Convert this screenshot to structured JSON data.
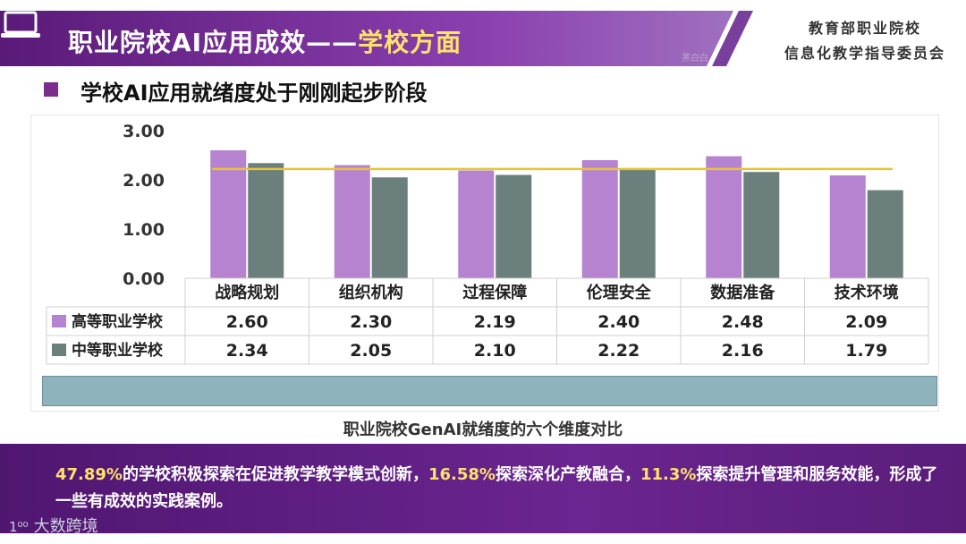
{
  "header": {
    "title": "职业院校AI应用成效——",
    "title_highlight": "学校方面",
    "org_line1": "教育部职业院校",
    "org_line2": "信息化教学指导委员会",
    "small_mark": "黑白白"
  },
  "subtitle": "学校AI应用就绪度处于刚刚起步阶段",
  "chart_data": {
    "type": "bar",
    "categories": [
      "战略规划",
      "组织机构",
      "过程保障",
      "伦理安全",
      "数据准备",
      "技术环境"
    ],
    "series": [
      {
        "name": "高等职业学校",
        "values": [
          2.6,
          2.3,
          2.19,
          2.4,
          2.48,
          2.09
        ],
        "labels": [
          "2.60",
          "2.30",
          "2.19",
          "2.40",
          "2.48",
          "2.09"
        ],
        "color": "#b583cf"
      },
      {
        "name": "中等职业学校",
        "values": [
          2.34,
          2.05,
          2.1,
          2.22,
          2.16,
          1.79
        ],
        "labels": [
          "2.34",
          "2.05",
          "2.10",
          "2.22",
          "2.16",
          "1.79"
        ],
        "color": "#6b807c"
      }
    ],
    "reference_line": {
      "value": 2.22,
      "color": "#e8c431"
    },
    "yticks": [
      "3.00",
      "2.00",
      "1.00",
      "0.00"
    ],
    "ylim": [
      0,
      3
    ],
    "grid": false,
    "legend": "data-table"
  },
  "caption": "职业院校GenAI就绪度的六个维度对比",
  "bottom": {
    "p1": "47.89%",
    "t1": "的学校积极探索在促进教学教学模式创新，",
    "p2": "16.58%",
    "t2": "探索深化产教融合，",
    "p3": "11.3%",
    "t3": "探索提升管理和服务效能，形成了一些有成效的实践案例。"
  },
  "watermark": {
    "logo": "1⁰⁰",
    "text": "大数跨境"
  }
}
